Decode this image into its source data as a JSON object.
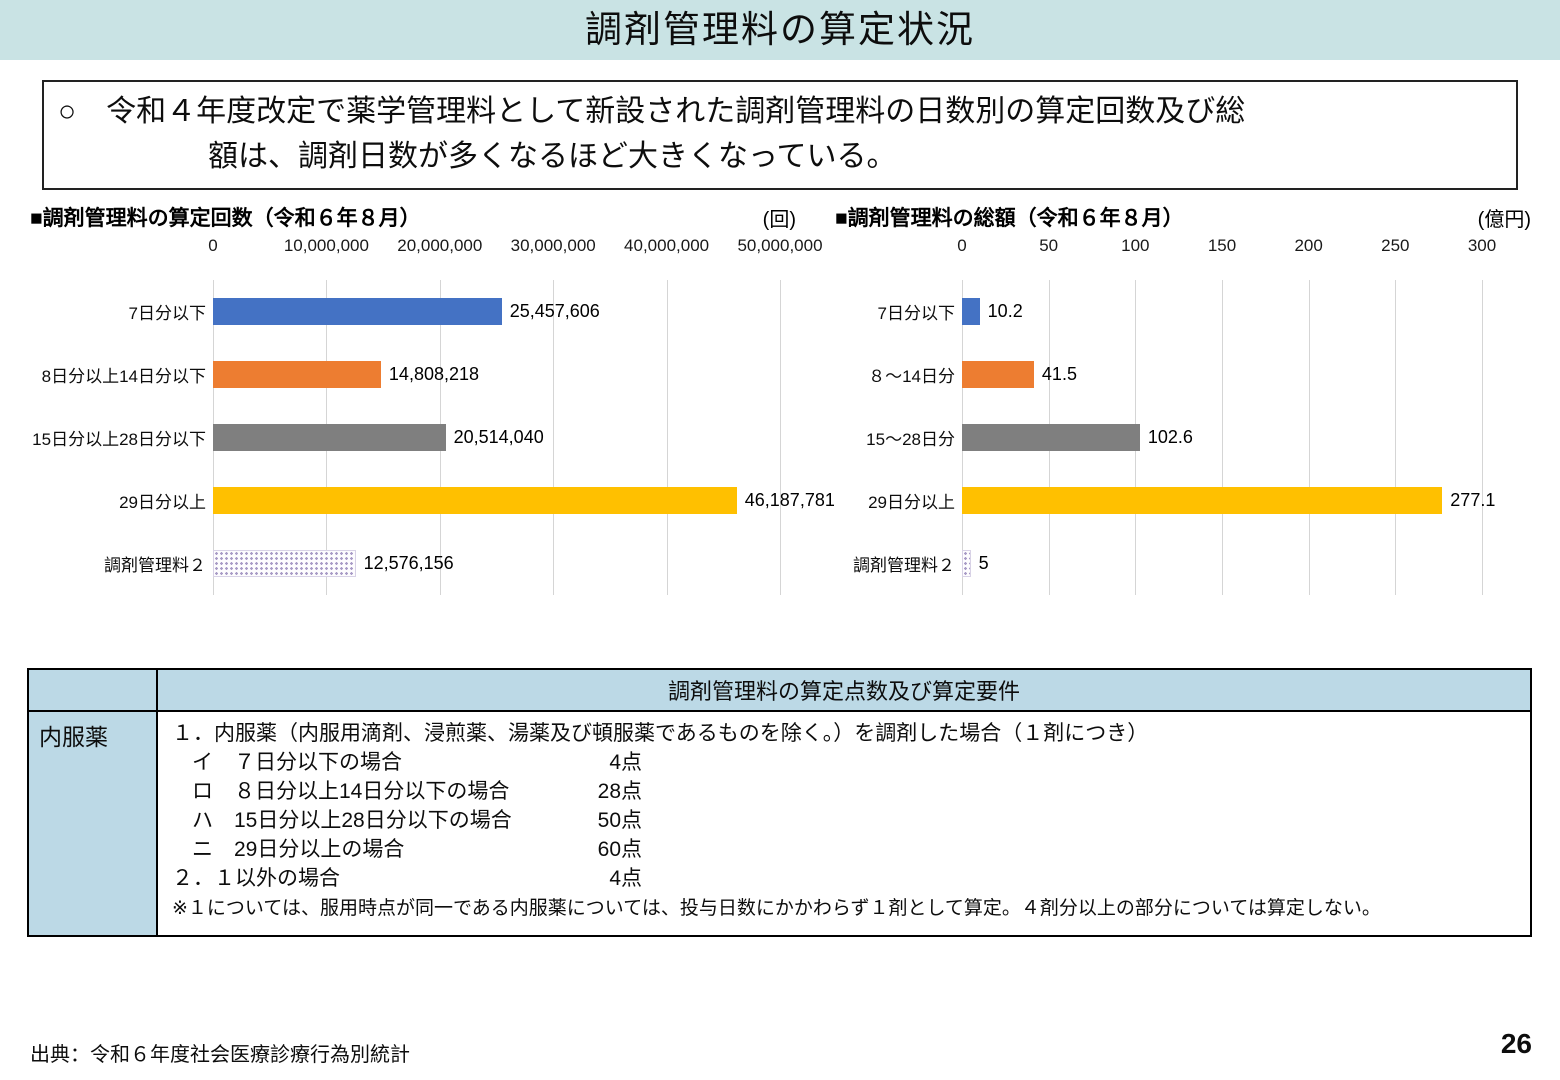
{
  "page": {
    "title": "調剤管理料の算定状況",
    "source": "出典：令和６年度社会医療診療行為別統計",
    "page_number": "26"
  },
  "summary": {
    "lines": [
      "○　令和４年度改定で薬学管理料として新設された調剤管理料の日数別の算定回数及び総",
      "額は、調剤日数が多くなるほど大きくなっている。"
    ]
  },
  "chart_data": [
    {
      "type": "bar",
      "orientation": "horizontal",
      "title": "■調剤管理料の算定回数（令和６年８月）",
      "unit_label": "(回)",
      "categories": [
        "7日分以下",
        "8日分以上14日分以下",
        "15日分以上28日分以下",
        "29日分以上",
        "調剤管理料２"
      ],
      "values": [
        25457606,
        14808218,
        20514040,
        46187781,
        12576156
      ],
      "value_labels": [
        "25,457,606",
        "14,808,218",
        "20,514,040",
        "46,187,781",
        "12,576,156"
      ],
      "colors": [
        "#4472c4",
        "#ed7d31",
        "#7f7f7f",
        "#ffc000",
        "#a89bc6"
      ],
      "dotted": [
        false,
        false,
        false,
        false,
        true
      ],
      "xlim": [
        0,
        50000000
      ],
      "x_ticks": [
        "0",
        "10,000,000",
        "20,000,000",
        "30,000,000",
        "40,000,000",
        "50,000,000"
      ],
      "grid": true,
      "legend": "none"
    },
    {
      "type": "bar",
      "orientation": "horizontal",
      "title": "■調剤管理料の総額（令和６年８月）",
      "unit_label": "(億円)",
      "categories": [
        "7日分以下",
        "８～14日分",
        "15～28日分",
        "29日分以上",
        "調剤管理料２"
      ],
      "values": [
        10.2,
        41.5,
        102.6,
        277.1,
        5
      ],
      "value_labels": [
        "10.2",
        "41.5",
        "102.6",
        "277.1",
        "5"
      ],
      "colors": [
        "#4472c4",
        "#ed7d31",
        "#7f7f7f",
        "#ffc000",
        "#a89bc6"
      ],
      "dotted": [
        false,
        false,
        false,
        false,
        true
      ],
      "xlim": [
        0,
        300
      ],
      "x_ticks": [
        "0",
        "50",
        "100",
        "150",
        "200",
        "250",
        "300"
      ],
      "grid": true,
      "legend": "none"
    }
  ],
  "table": {
    "header": "調剤管理料の算定点数及び算定要件",
    "row_label": "内服薬",
    "rows": [
      {
        "text": "１．内服薬（内服用滴剤、浸煎薬、湯薬及び頓服薬であるものを除く。）を調剤した場合（１剤につき）",
        "points": "",
        "indent": 0,
        "note": false
      },
      {
        "text": "イ　７日分以下の場合",
        "points": "4点",
        "indent": 1,
        "note": false
      },
      {
        "text": "ロ　８日分以上14日分以下の場合",
        "points": "28点",
        "indent": 1,
        "note": false
      },
      {
        "text": "ハ　15日分以上28日分以下の場合",
        "points": "50点",
        "indent": 1,
        "note": false
      },
      {
        "text": "ニ　29日分以上の場合",
        "points": "60点",
        "indent": 1,
        "note": false
      },
      {
        "text": "２．１以外の場合",
        "points": "4点",
        "indent": 0,
        "note": false
      },
      {
        "text": "※１については、服用時点が同一である内服薬については、投与日数にかかわらず１剤として算定。４剤分以上の部分については算定しない。",
        "points": "",
        "indent": 0,
        "note": true
      }
    ]
  }
}
